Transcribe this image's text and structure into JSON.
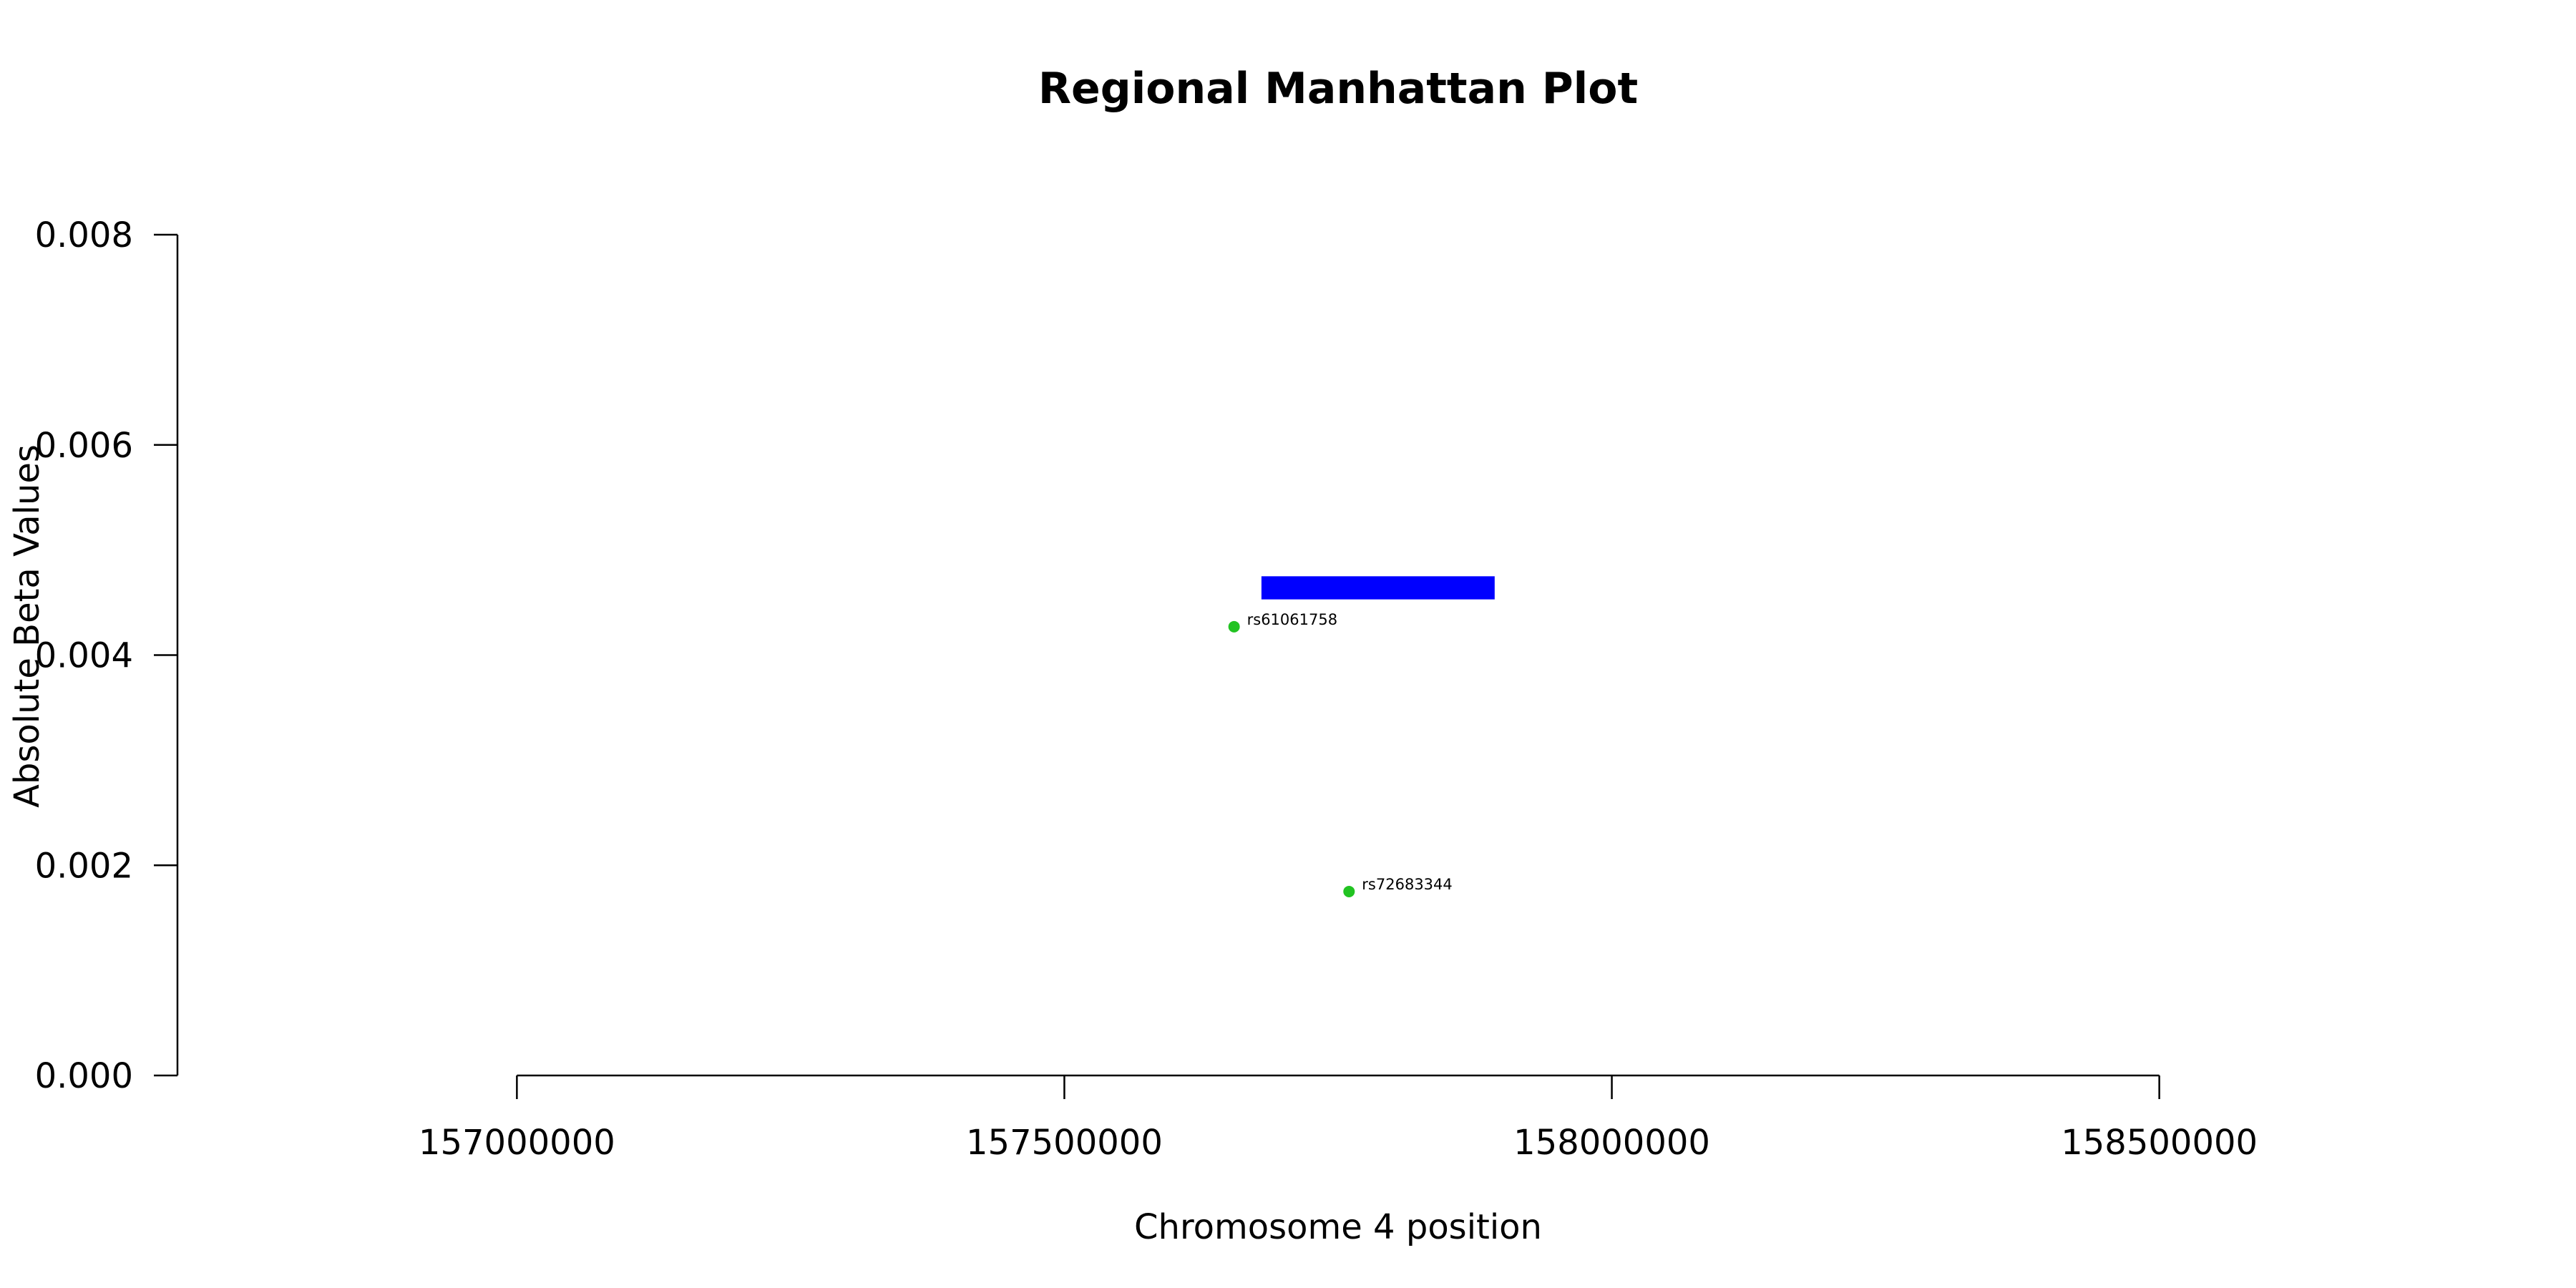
{
  "chart_data": {
    "type": "scatter",
    "title": "Regional Manhattan Plot",
    "xlabel": "Chromosome 4 position",
    "ylabel": "Absolute Beta Values",
    "xlim": [
      156690000,
      158810000
    ],
    "ylim": [
      0,
      0.008
    ],
    "x_ticks": [
      157000000,
      157500000,
      158000000,
      158500000
    ],
    "x_tick_labels": [
      "157000000",
      "157500000",
      "158000000",
      "158500000"
    ],
    "y_ticks": [
      0,
      0.002,
      0.004,
      0.006,
      0.008
    ],
    "y_tick_labels": [
      "0.000",
      "0.002",
      "0.004",
      "0.006",
      "0.008"
    ],
    "grid": false,
    "colors": {
      "points": "#22c322",
      "gene_bar": "#0000ff",
      "axes": "#000000"
    },
    "points": [
      {
        "label": "rs61061758",
        "x": 157655000,
        "y": 0.00427
      },
      {
        "label": "rs72683344",
        "x": 157760000,
        "y": 0.00175
      }
    ],
    "gene_bar": {
      "x_start": 157680000,
      "x_end": 157893000,
      "y_low": 0.00453,
      "y_high": 0.00475
    }
  }
}
